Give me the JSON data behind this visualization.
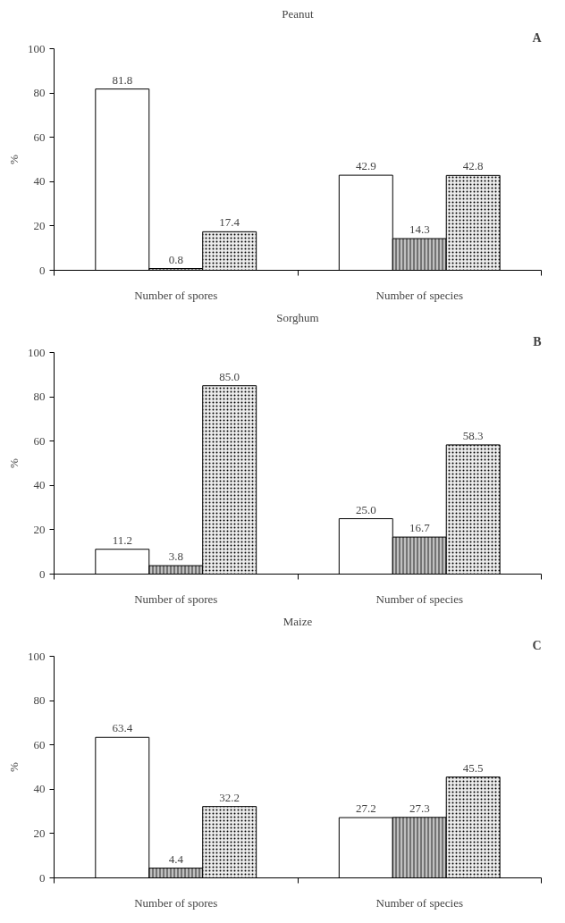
{
  "chart_data": [
    {
      "type": "bar",
      "title": "Peanut",
      "annotations": [
        "A"
      ],
      "ylabel": "%",
      "categories": [
        "Number of spores",
        "Number of species"
      ],
      "ylim": [
        0,
        100
      ],
      "yticks": [
        0,
        20,
        40,
        60,
        80,
        100
      ],
      "grid": false,
      "series": [
        {
          "color": "#ffffff",
          "values": [
            81.8,
            42.9
          ],
          "value_labels": [
            "81.8",
            "42.9"
          ]
        },
        {
          "color": "#c0c0c0",
          "values": [
            0.8,
            14.3
          ],
          "value_labels": [
            "0.8",
            "14.3"
          ]
        },
        {
          "color": "#ececec",
          "values": [
            17.4,
            42.8
          ],
          "value_labels": [
            "17.4",
            "42.8"
          ]
        }
      ]
    },
    {
      "type": "bar",
      "title": "Sorghum",
      "annotations": [
        "B"
      ],
      "ylabel": "%",
      "categories": [
        "Number of spores",
        "Number of species"
      ],
      "ylim": [
        0,
        100
      ],
      "yticks": [
        0,
        20,
        40,
        60,
        80,
        100
      ],
      "grid": false,
      "series": [
        {
          "color": "#ffffff",
          "values": [
            11.2,
            25.0
          ],
          "value_labels": [
            "11.2",
            "25.0"
          ]
        },
        {
          "color": "#c0c0c0",
          "values": [
            3.8,
            16.7
          ],
          "value_labels": [
            "3.8",
            "16.7"
          ]
        },
        {
          "color": "#ececec",
          "values": [
            85.0,
            58.3
          ],
          "value_labels": [
            "85.0",
            "58.3"
          ]
        }
      ]
    },
    {
      "type": "bar",
      "title": "Maize",
      "annotations": [
        "C"
      ],
      "ylabel": "%",
      "categories": [
        "Number of spores",
        "Number of species"
      ],
      "ylim": [
        0,
        100
      ],
      "yticks": [
        0,
        20,
        40,
        60,
        80,
        100
      ],
      "grid": false,
      "series": [
        {
          "color": "#ffffff",
          "values": [
            63.4,
            27.2
          ],
          "value_labels": [
            "63.4",
            "27.2"
          ]
        },
        {
          "color": "#c0c0c0",
          "values": [
            4.4,
            27.3
          ],
          "value_labels": [
            "4.4",
            "27.3"
          ]
        },
        {
          "color": "#ececec",
          "values": [
            32.2,
            45.5
          ],
          "value_labels": [
            "32.2",
            "45.5"
          ]
        }
      ]
    }
  ]
}
